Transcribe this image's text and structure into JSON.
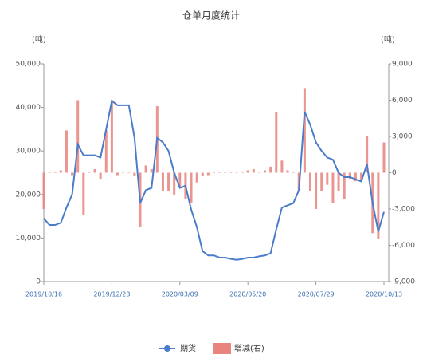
{
  "chart_data": {
    "type": "combo",
    "title": "仓单月度统计",
    "y_label": "(吨)",
    "y2_label": "(吨)",
    "categories": [
      "2019/10/16",
      null,
      null,
      null,
      null,
      null,
      null,
      null,
      null,
      null,
      null,
      null,
      "2019/12/23",
      null,
      null,
      null,
      null,
      null,
      null,
      null,
      null,
      null,
      null,
      null,
      "2020/03/09",
      null,
      null,
      null,
      null,
      null,
      null,
      null,
      null,
      null,
      null,
      null,
      "2020/05/20",
      null,
      null,
      null,
      null,
      null,
      null,
      null,
      null,
      null,
      null,
      null,
      "2020/07/29",
      null,
      null,
      null,
      null,
      null,
      null,
      null,
      null,
      null,
      null,
      null,
      "2020/10/13"
    ],
    "series": [
      {
        "name": "期货",
        "type": "line",
        "color": "#4a7cc9",
        "values": [
          14500,
          13000,
          13000,
          13500,
          17000,
          20000,
          31500,
          29000,
          29000,
          29000,
          28500,
          35000,
          41500,
          40500,
          40500,
          40500,
          33000,
          18000,
          21000,
          21500,
          33000,
          32000,
          30000,
          25000,
          21500,
          22000,
          16500,
          12500,
          7000,
          6000,
          6000,
          5500,
          5500,
          5200,
          5000,
          5200,
          5500,
          5500,
          5800,
          6000,
          6500,
          12000,
          17000,
          17500,
          18000,
          21000,
          39000,
          36000,
          32000,
          30000,
          28500,
          28000,
          25000,
          24000,
          24000,
          23500,
          23000,
          27000,
          18000,
          11500,
          16000
        ]
      },
      {
        "name": "增减(右)",
        "type": "bar",
        "axis": "y2",
        "color": "#e8837e",
        "values": [
          -3000,
          0,
          0,
          200,
          3500,
          -200,
          6000,
          -3500,
          100,
          300,
          -500,
          3500,
          6000,
          -200,
          0,
          0,
          -300,
          -4500,
          600,
          300,
          5500,
          -1500,
          -1500,
          -1800,
          -1200,
          -2200,
          -2500,
          -800,
          -300,
          -200,
          100,
          0,
          0,
          0,
          100,
          0,
          200,
          300,
          0,
          200,
          500,
          5000,
          1000,
          200,
          100,
          -1500,
          7000,
          -1500,
          -3000,
          -1500,
          -1000,
          -2500,
          -1500,
          -2200,
          -500,
          -700,
          -700,
          3000,
          -5000,
          -5500,
          2500
        ]
      }
    ],
    "ylim": [
      0,
      50000
    ],
    "yticks": [
      {
        "value": 0,
        "label": "0"
      },
      {
        "value": 10000,
        "label": "10,000"
      },
      {
        "value": 20000,
        "label": "20,000"
      },
      {
        "value": 30000,
        "label": "30,000"
      },
      {
        "value": 40000,
        "label": "40,000"
      },
      {
        "value": 50000,
        "label": "50,000"
      }
    ],
    "y2lim": [
      -9000,
      9000
    ],
    "y2ticks": [
      {
        "value": -9000,
        "label": "-9,000"
      },
      {
        "value": -6000,
        "label": "-6,000"
      },
      {
        "value": -3000,
        "label": "-3,000"
      },
      0,
      {
        "value": 3000,
        "label": "3,000"
      },
      {
        "value": 6000,
        "label": "6,000"
      },
      {
        "value": 9000,
        "label": "9,000"
      }
    ],
    "grid": false,
    "legend": "bottom"
  }
}
